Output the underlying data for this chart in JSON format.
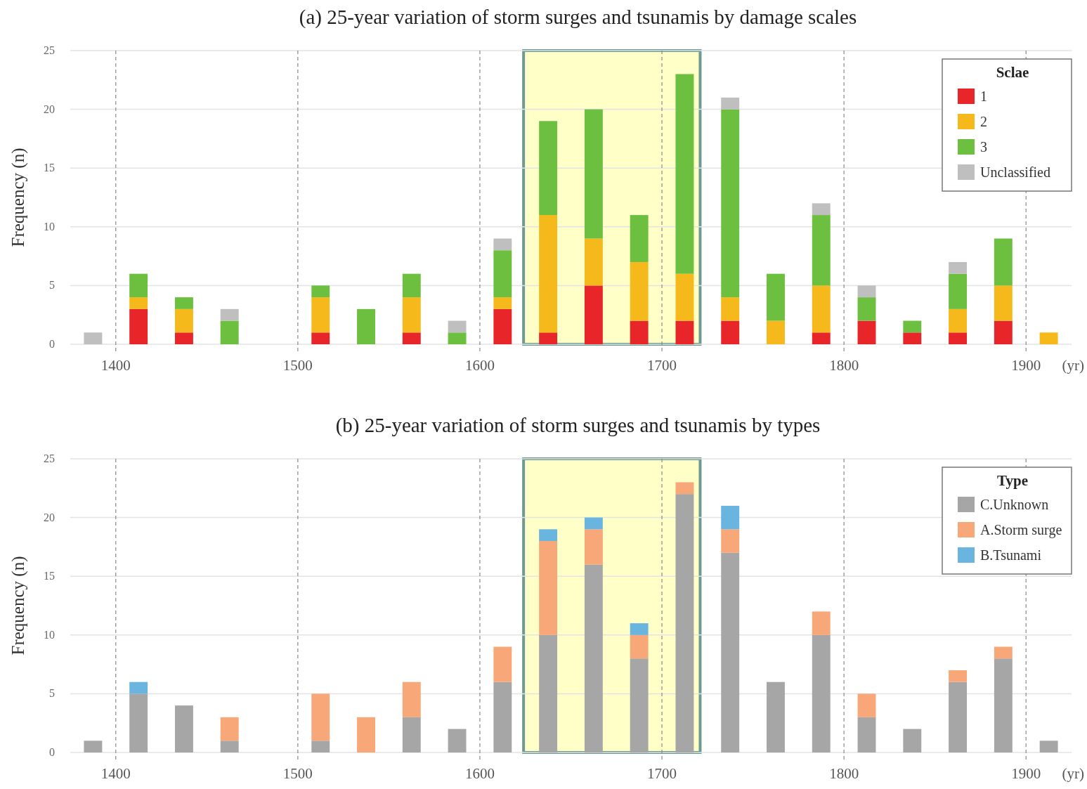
{
  "chart_data": [
    {
      "type": "bar",
      "title": "(a) 25-year variation of storm surges and tsunamis by damage scales",
      "ylabel": "Frequency (n)",
      "xlabel": "(yr)",
      "legend_title": "Sclae",
      "stacked": true,
      "x": [
        1387.5,
        1412.5,
        1437.5,
        1462.5,
        1487.5,
        1512.5,
        1537.5,
        1562.5,
        1587.5,
        1612.5,
        1637.5,
        1662.5,
        1687.5,
        1712.5,
        1737.5,
        1762.5,
        1787.5,
        1812.5,
        1837.5,
        1862.5,
        1887.5,
        1912.5
      ],
      "series": [
        {
          "name": "1",
          "color": "#e8262a",
          "values": [
            0,
            3,
            1,
            0,
            0,
            1,
            0,
            1,
            0,
            3,
            1,
            5,
            2,
            2,
            2,
            0,
            1,
            2,
            1,
            1,
            2,
            0
          ]
        },
        {
          "name": "2",
          "color": "#f5b91c",
          "values": [
            0,
            1,
            2,
            0,
            0,
            3,
            0,
            3,
            0,
            1,
            10,
            4,
            5,
            4,
            2,
            2,
            4,
            0,
            0,
            2,
            3,
            1
          ]
        },
        {
          "name": "3",
          "color": "#6cbf3f",
          "values": [
            0,
            2,
            1,
            2,
            0,
            1,
            3,
            2,
            1,
            4,
            8,
            11,
            4,
            17,
            16,
            4,
            6,
            2,
            1,
            3,
            4,
            0
          ]
        },
        {
          "name": "Unclassified",
          "color": "#bfbfbf",
          "values": [
            1,
            0,
            0,
            1,
            0,
            0,
            0,
            0,
            1,
            1,
            0,
            0,
            0,
            0,
            1,
            0,
            1,
            1,
            0,
            1,
            0,
            0
          ]
        }
      ],
      "xlim": [
        1375,
        1925
      ],
      "xticks": [
        1400,
        1500,
        1600,
        1700,
        1800,
        1900
      ],
      "ylim": [
        0,
        25
      ],
      "yticks": [
        0,
        5,
        10,
        15,
        20,
        25
      ],
      "grid": true,
      "legend": "top right",
      "bands": [
        {
          "axis": "x",
          "from": 1624,
          "to": 1721,
          "color": "#ffffc8"
        }
      ]
    },
    {
      "type": "bar",
      "title": "(b) 25-year variation of storm surges and tsunamis by types",
      "ylabel": "Frequency (n)",
      "xlabel": "(yr)",
      "legend_title": "Type",
      "stacked": true,
      "x": [
        1387.5,
        1412.5,
        1437.5,
        1462.5,
        1487.5,
        1512.5,
        1537.5,
        1562.5,
        1587.5,
        1612.5,
        1637.5,
        1662.5,
        1687.5,
        1712.5,
        1737.5,
        1762.5,
        1787.5,
        1812.5,
        1837.5,
        1862.5,
        1887.5,
        1912.5
      ],
      "series": [
        {
          "name": "C.Unknown",
          "color": "#a6a6a6",
          "values": [
            1,
            5,
            4,
            1,
            0,
            1,
            0,
            3,
            2,
            6,
            10,
            16,
            8,
            22,
            17,
            6,
            10,
            3,
            2,
            6,
            8,
            1
          ]
        },
        {
          "name": "A.Storm surge",
          "color": "#f8a878",
          "values": [
            0,
            0,
            0,
            2,
            0,
            4,
            3,
            3,
            0,
            3,
            8,
            3,
            2,
            1,
            2,
            0,
            2,
            2,
            0,
            1,
            1,
            0
          ]
        },
        {
          "name": "B.Tsunami",
          "color": "#6ab4e0",
          "values": [
            0,
            1,
            0,
            0,
            0,
            0,
            0,
            0,
            0,
            0,
            1,
            1,
            1,
            0,
            2,
            0,
            0,
            0,
            0,
            0,
            0,
            0
          ]
        }
      ],
      "xlim": [
        1375,
        1925
      ],
      "xticks": [
        1400,
        1500,
        1600,
        1700,
        1800,
        1900
      ],
      "ylim": [
        0,
        25
      ],
      "yticks": [
        0,
        5,
        10,
        15,
        20,
        25
      ],
      "grid": true,
      "legend": "top right",
      "bands": [
        {
          "axis": "x",
          "from": 1624,
          "to": 1721,
          "color": "#ffffc8"
        }
      ]
    }
  ]
}
